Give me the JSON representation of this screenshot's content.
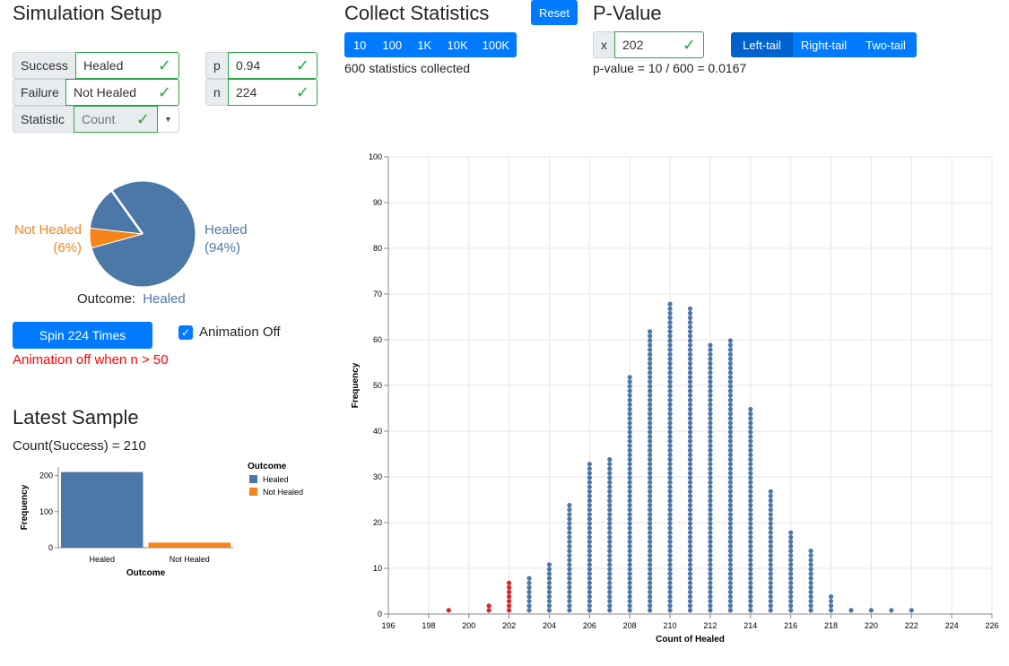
{
  "setup": {
    "title": "Simulation Setup",
    "success": {
      "label": "Success",
      "value": "Healed"
    },
    "failure": {
      "label": "Failure",
      "value": "Not Healed"
    },
    "statistic": {
      "label": "Statistic",
      "value": "Count"
    },
    "p": {
      "label": "p",
      "value": "0.94"
    },
    "n": {
      "label": "n",
      "value": "224"
    },
    "pie": {
      "labels": {
        "healed_line1": "Healed",
        "healed_line2": "(94%)",
        "not_healed_line1": "Not Healed",
        "not_healed_line2": "(6%)"
      },
      "outcome_label": "Outcome:",
      "outcome_value": "Healed",
      "healed_fraction": 0.94
    },
    "spin_button": "Spin 224 Times",
    "animation_label": "Animation Off",
    "animation_warning": "Animation off when n > 50"
  },
  "latest": {
    "title": "Latest Sample",
    "count_text": "Count(Success) = 210"
  },
  "collect": {
    "title": "Collect Statistics",
    "reset": "Reset",
    "buttons": [
      "10",
      "100",
      "1K",
      "10K",
      "100K"
    ],
    "status": "600 statistics collected"
  },
  "pvalue": {
    "title": "P-Value",
    "x_label": "x",
    "x_value": "202",
    "tails": [
      "Left-tail",
      "Right-tail",
      "Two-tail"
    ],
    "active_tail": "Left-tail",
    "result": "p-value = 10 / 600 = 0.0167"
  },
  "colors": {
    "healed": "#4c78a8",
    "not_healed": "#f58518",
    "tail": "#d62728",
    "primary": "#007bff",
    "success": "#28a745",
    "warning_text": "#ff0000"
  },
  "chart_data": [
    {
      "type": "bar",
      "title": "Latest Sample",
      "categories": [
        "Healed",
        "Not Healed"
      ],
      "values": [
        210,
        14
      ],
      "xlabel": "Outcome",
      "ylabel": "Frequency",
      "ylim": [
        0,
        224
      ],
      "yticks": [
        0,
        100,
        200
      ],
      "legend": {
        "title": "Outcome",
        "entries": [
          "Healed",
          "Not Healed"
        ],
        "placement": "right"
      }
    },
    {
      "type": "scatter",
      "subtype": "dotplot",
      "xlabel": "Count of Healed",
      "ylabel": "Frequency",
      "xlim": [
        196,
        226
      ],
      "ylim": [
        0,
        100
      ],
      "xticks": [
        196,
        198,
        200,
        202,
        204,
        206,
        208,
        210,
        212,
        214,
        216,
        218,
        220,
        222,
        224,
        226
      ],
      "yticks": [
        0,
        10,
        20,
        30,
        40,
        50,
        60,
        70,
        80,
        90,
        100
      ],
      "tail_cutoff": 202,
      "x": [
        199,
        201,
        202,
        203,
        204,
        205,
        206,
        207,
        208,
        209,
        210,
        211,
        212,
        213,
        214,
        215,
        216,
        217,
        218,
        219,
        220,
        221,
        222
      ],
      "counts": [
        1,
        2,
        7,
        8,
        11,
        24,
        33,
        34,
        52,
        62,
        68,
        67,
        59,
        60,
        45,
        27,
        18,
        14,
        4,
        1,
        1,
        1,
        1
      ]
    }
  ]
}
